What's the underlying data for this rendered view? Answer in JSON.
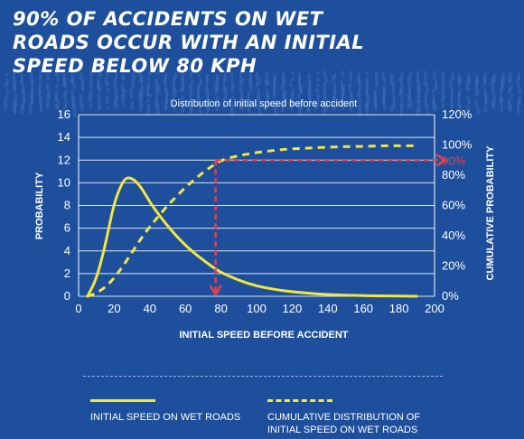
{
  "headline": {
    "line1": "90% OF ACCIDENTS ON WET",
    "line2": "ROADS OCCUR WITH AN INITIAL",
    "line3": "SPEED BELOW 80 KPH"
  },
  "colors": {
    "background": "#1e4f9c",
    "curve": "#f2e640",
    "marker": "#e8404a",
    "text": "#ffffff"
  },
  "chart_data": {
    "type": "line",
    "title": "Distribution of initial speed before accident",
    "xlabel": "INITIAL SPEED BEFORE ACCIDENT",
    "ylabel": "PROBABILITY",
    "y2label": "CUMULATIVE PROBABILITY",
    "xlim": [
      0,
      200
    ],
    "ylim": [
      0,
      16
    ],
    "y2lim": [
      0,
      120
    ],
    "x_ticks": [
      0,
      20,
      40,
      60,
      80,
      100,
      120,
      140,
      160,
      180,
      200
    ],
    "y_ticks": [
      0,
      2,
      4,
      6,
      8,
      10,
      12,
      14,
      16
    ],
    "y2_ticks": [
      "0%",
      "20%",
      "40%",
      "60%",
      "80%",
      "100%",
      "120%"
    ],
    "grid": true,
    "series": [
      {
        "name": "INITIAL SPEED ON WET ROADS",
        "axis": "left",
        "style": "solid",
        "x": [
          5,
          10,
          15,
          20,
          25,
          28,
          32,
          36,
          40,
          45,
          50,
          55,
          60,
          65,
          70,
          75,
          80,
          90,
          100,
          110,
          120,
          130,
          140,
          150,
          160,
          170,
          180,
          190
        ],
        "y": [
          0,
          1.5,
          4.5,
          8.3,
          10.2,
          10.5,
          10.2,
          9.4,
          8.3,
          7.2,
          6.2,
          5.3,
          4.5,
          3.8,
          3.2,
          2.6,
          2.1,
          1.4,
          0.9,
          0.6,
          0.4,
          0.25,
          0.15,
          0.1,
          0.05,
          0.03,
          0.02,
          0
        ]
      },
      {
        "name": "CUMULATIVE DISTRIBUTION OF INITIAL SPEED ON WET ROADS",
        "axis": "right",
        "style": "dashed",
        "x": [
          5,
          10,
          15,
          20,
          25,
          30,
          35,
          40,
          45,
          50,
          55,
          60,
          65,
          70,
          75,
          80,
          90,
          100,
          110,
          120,
          130,
          140,
          150,
          160,
          170,
          180,
          190
        ],
        "y": [
          0,
          2,
          6,
          12,
          20,
          29,
          38,
          46,
          53,
          60,
          66,
          72,
          77,
          82,
          86,
          90,
          93,
          95,
          96.5,
          97.5,
          98,
          98.5,
          99,
          99,
          99.5,
          99.5,
          99.5
        ]
      }
    ],
    "annotation": {
      "label": "90%",
      "x": 77,
      "y2": 90,
      "y_on_density": 2.3
    }
  },
  "legend": {
    "item1": "INITIAL SPEED ON WET ROADS",
    "item2_line1": "CUMULATIVE DISTRIBUTION OF",
    "item2_line2": "INITIAL SPEED ON WET ROADS"
  }
}
